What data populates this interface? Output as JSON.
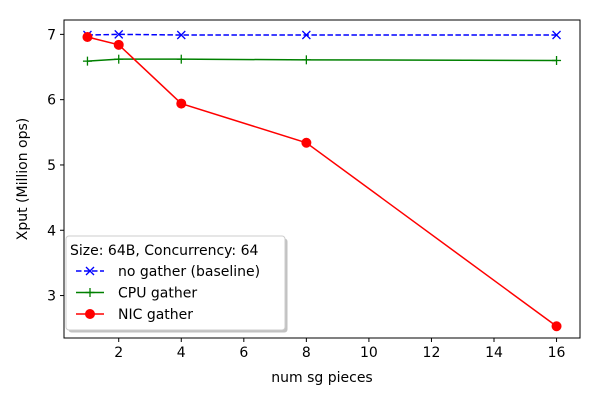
{
  "chart_data": {
    "type": "line",
    "xlabel": "num sg pieces",
    "ylabel": "Xput (Million ops)",
    "xlim": [
      0.25,
      16.75
    ],
    "ylim": [
      2.35,
      7.22
    ],
    "xticks": [
      2,
      4,
      6,
      8,
      10,
      12,
      14,
      16
    ],
    "yticks": [
      3,
      4,
      5,
      6,
      7
    ],
    "grid": false,
    "legend": {
      "title": "Size: 64B, Concurrency: 64",
      "placement": "lower-left"
    },
    "series": [
      {
        "name": "no gather (baseline)",
        "color": "#0000ff",
        "line_style": "dashed",
        "marker": "x",
        "x": [
          1,
          2,
          4,
          8,
          16
        ],
        "y": [
          6.99,
          7.0,
          6.99,
          6.99,
          6.99
        ]
      },
      {
        "name": "CPU gather",
        "color": "#008000",
        "line_style": "solid",
        "marker": "+",
        "x": [
          1,
          2,
          4,
          8,
          16
        ],
        "y": [
          6.59,
          6.62,
          6.62,
          6.61,
          6.6
        ]
      },
      {
        "name": "NIC gather",
        "color": "#ff0000",
        "line_style": "solid",
        "marker": "circle",
        "x": [
          1,
          2,
          4,
          8,
          16
        ],
        "y": [
          6.96,
          6.84,
          5.94,
          5.34,
          2.53
        ]
      }
    ]
  }
}
